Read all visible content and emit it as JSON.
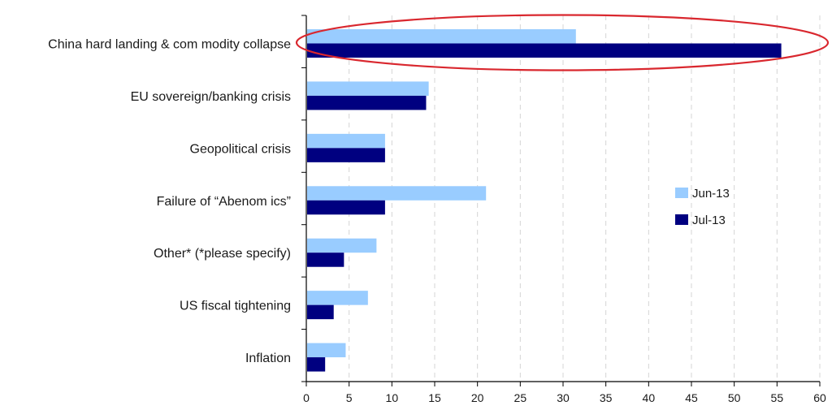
{
  "chart_data": {
    "type": "bar",
    "orientation": "horizontal",
    "categories": [
      "China hard landing & com modity collapse",
      "EU sovereign/banking crisis",
      "Geopolitical crisis",
      "Failure of “Abenom ics”",
      "Other* (*please specify)",
      "US fiscal tightening",
      "Inflation"
    ],
    "series": [
      {
        "name": "Jun-13",
        "color": "#99ccff",
        "values": [
          31.5,
          14.3,
          9.2,
          21,
          8.2,
          7.2,
          4.6
        ]
      },
      {
        "name": "Jul-13",
        "color": "#000080",
        "values": [
          55.5,
          14,
          9.2,
          9.2,
          4.4,
          3.2,
          2.2
        ]
      }
    ],
    "xlim": [
      0,
      60
    ],
    "xticks": [
      0,
      5,
      10,
      15,
      20,
      25,
      30,
      35,
      40,
      45,
      50,
      55,
      60
    ],
    "grid": "vertical dashed",
    "legend_position": "right",
    "highlight": {
      "category_index": 0,
      "shape": "ellipse",
      "color": "#d9272e"
    }
  }
}
